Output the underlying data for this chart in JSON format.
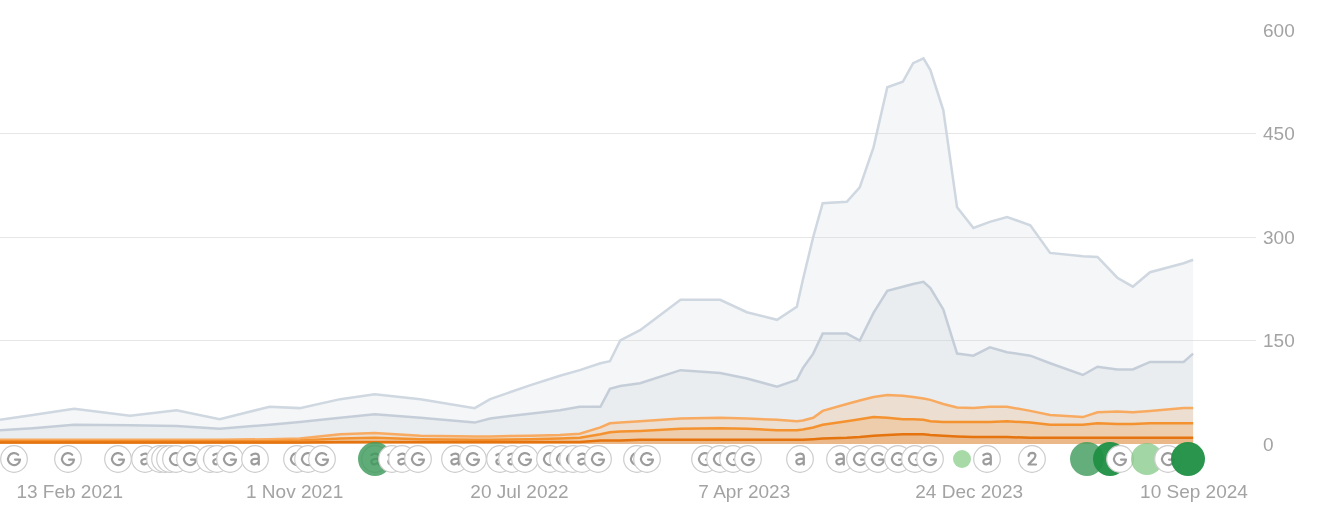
{
  "chart_data": {
    "type": "area",
    "x": [
      "2020-11-24",
      "2021-01-01",
      "2021-02-18",
      "2021-04-24",
      "2021-06-17",
      "2021-08-06",
      "2021-10-03",
      "2021-11-07",
      "2021-12-24",
      "2022-02-02",
      "2022-03-27",
      "2022-05-29",
      "2022-06-16",
      "2022-08-01",
      "2022-09-05",
      "2022-09-28",
      "2022-10-22",
      "2022-11-02",
      "2022-11-14",
      "2022-12-07",
      "2023-01-23",
      "2023-03-10",
      "2023-04-10",
      "2023-05-15",
      "2023-06-07",
      "2023-06-14",
      "2023-06-26",
      "2023-07-07",
      "2023-08-04",
      "2023-08-19",
      "2023-09-04",
      "2023-09-20",
      "2023-10-08",
      "2023-10-20",
      "2023-11-01",
      "2023-11-09",
      "2023-11-24",
      "2023-12-10",
      "2023-12-29",
      "2024-01-17",
      "2024-02-06",
      "2024-03-04",
      "2024-03-27",
      "2024-05-04",
      "2024-05-21",
      "2024-06-13",
      "2024-07-01",
      "2024-07-21",
      "2024-08-29",
      "2024-09-09"
    ],
    "series": [
      {
        "color": "#cfd7e0",
        "values": [
          35,
          42,
          51,
          41,
          49,
          36,
          54,
          52,
          65,
          72,
          65,
          52,
          65,
          85,
          99,
          107,
          117,
          120,
          150,
          165,
          209,
          209,
          191,
          180,
          199,
          238,
          300,
          349,
          351,
          372,
          430,
          517,
          525,
          552,
          559,
          542,
          484,
          343,
          313,
          322,
          329,
          317,
          277,
          272,
          271,
          241,
          228,
          249,
          262,
          267
        ]
      },
      {
        "color": "#c5ced8",
        "values": [
          20,
          23,
          28,
          27,
          26,
          22,
          28,
          32,
          38,
          43,
          38,
          31,
          37,
          44,
          49,
          54,
          54,
          80,
          84,
          88,
          107,
          103,
          95,
          83,
          93,
          110,
          131,
          160,
          160,
          150,
          190,
          222,
          228,
          232,
          235,
          226,
          195,
          131,
          128,
          140,
          133,
          128,
          117,
          100,
          112,
          108,
          108,
          119,
          119,
          131
        ]
      },
      {
        "color": "#f8aa60",
        "values": [
          6,
          6,
          6,
          6,
          6,
          6,
          7,
          8,
          14,
          16,
          12,
          11,
          11,
          12,
          13,
          15,
          24,
          30,
          31,
          33,
          37,
          38,
          37,
          35,
          33,
          34,
          38,
          48,
          58,
          63,
          68,
          71,
          70,
          68,
          66,
          64,
          58,
          53,
          52,
          54,
          54,
          48,
          42,
          39,
          46,
          47,
          46,
          48,
          52,
          52
        ]
      },
      {
        "color": "#f4922f",
        "values": [
          4,
          4,
          4,
          4,
          4,
          4,
          4,
          5,
          8,
          9,
          7,
          6,
          6,
          7,
          8,
          9,
          14,
          17,
          18,
          19,
          22,
          23,
          22,
          20,
          20,
          21,
          24,
          28,
          33,
          36,
          39,
          38,
          36,
          36,
          35,
          33,
          32,
          32,
          32,
          32,
          33,
          31,
          28,
          28,
          30,
          29,
          29,
          30,
          30,
          30
        ]
      },
      {
        "color": "#e5730e",
        "values": [
          2,
          2,
          2,
          2,
          2,
          2,
          2,
          2,
          3,
          3,
          3,
          3,
          3,
          3,
          3,
          3,
          5,
          5,
          5,
          6,
          6,
          6,
          6,
          6,
          6,
          6,
          7,
          8,
          9,
          10,
          12,
          13,
          14,
          14,
          14,
          13,
          12,
          11,
          10,
          10,
          10,
          9,
          9,
          9,
          9,
          9,
          9,
          9,
          9,
          9
        ]
      }
    ],
    "xlim": [
      "2020-11-24",
      "2024-11-21"
    ],
    "xticks": [
      {
        "value": "2021-02-13",
        "label": "13 Feb 2021"
      },
      {
        "value": "2021-11-01",
        "label": "1 Nov 2021"
      },
      {
        "value": "2022-07-20",
        "label": "20 Jul 2022"
      },
      {
        "value": "2023-04-07",
        "label": "7 Apr 2023"
      },
      {
        "value": "2023-12-24",
        "label": "24 Dec 2023"
      },
      {
        "value": "2024-09-10",
        "label": "10 Sep 2024"
      }
    ],
    "ylim": [
      0,
      600
    ],
    "yticks": [
      0,
      150,
      300,
      450,
      600
    ],
    "grid": "y"
  }
}
